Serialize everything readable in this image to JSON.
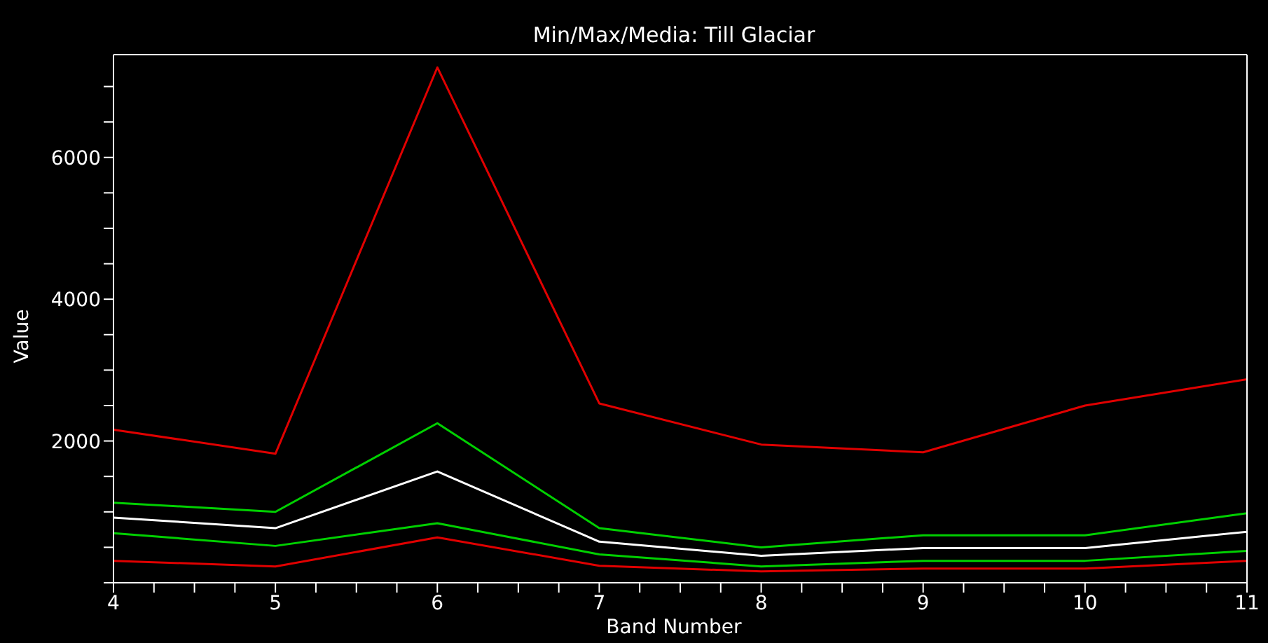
{
  "chart_data": {
    "type": "line",
    "title": "Min/Max/Media: Till Glaciar",
    "xlabel": "Band Number",
    "ylabel": "Value",
    "x": [
      4,
      5,
      6,
      7,
      8,
      9,
      10,
      11
    ],
    "series": [
      {
        "color": "#e00000",
        "values": [
          2160,
          1820,
          7270,
          2530,
          1950,
          1840,
          2500,
          2870
        ]
      },
      {
        "color": "#00d000",
        "values": [
          1130,
          1000,
          2250,
          770,
          500,
          670,
          670,
          980
        ]
      },
      {
        "color": "#ffffff",
        "values": [
          920,
          770,
          1570,
          580,
          380,
          490,
          490,
          720
        ]
      },
      {
        "color": "#00d000",
        "values": [
          700,
          520,
          840,
          400,
          230,
          310,
          310,
          450
        ]
      },
      {
        "color": "#e00000",
        "values": [
          310,
          230,
          640,
          240,
          160,
          200,
          200,
          310
        ]
      }
    ],
    "xlim": [
      4,
      11
    ],
    "ylim": [
      0,
      7450
    ],
    "xticks": [
      4,
      {
        "value": 4.25,
        "label": null
      },
      {
        "value": 4.5,
        "label": null
      },
      {
        "value": 4.75,
        "label": null
      },
      5,
      {
        "value": 5.25,
        "label": null
      },
      {
        "value": 5.5,
        "label": null
      },
      {
        "value": 5.75,
        "label": null
      },
      6,
      {
        "value": 6.25,
        "label": null
      },
      {
        "value": 6.5,
        "label": null
      },
      {
        "value": 6.75,
        "label": null
      },
      7,
      {
        "value": 7.25,
        "label": null
      },
      {
        "value": 7.5,
        "label": null
      },
      {
        "value": 7.75,
        "label": null
      },
      8,
      {
        "value": 8.25,
        "label": null
      },
      {
        "value": 8.5,
        "label": null
      },
      {
        "value": 8.75,
        "label": null
      },
      9,
      {
        "value": 9.25,
        "label": null
      },
      {
        "value": 9.5,
        "label": null
      },
      {
        "value": 9.75,
        "label": null
      },
      10,
      {
        "value": 10.25,
        "label": null
      },
      {
        "value": 10.5,
        "label": null
      },
      {
        "value": 10.75,
        "label": null
      },
      11
    ],
    "yticks": [
      {
        "value": 0,
        "label": null
      },
      {
        "value": 500,
        "label": null
      },
      {
        "value": 1000,
        "label": null
      },
      {
        "value": 1500,
        "label": null
      },
      2000,
      {
        "value": 2500,
        "label": null
      },
      {
        "value": 3000,
        "label": null
      },
      {
        "value": 3500,
        "label": null
      },
      4000,
      {
        "value": 4500,
        "label": null
      },
      {
        "value": 5000,
        "label": null
      },
      {
        "value": 5500,
        "label": null
      },
      6000,
      {
        "value": 6500,
        "label": null
      },
      {
        "value": 7000,
        "label": null
      }
    ],
    "grid": false,
    "legend": false,
    "marker": "none",
    "line_style": "solid"
  }
}
